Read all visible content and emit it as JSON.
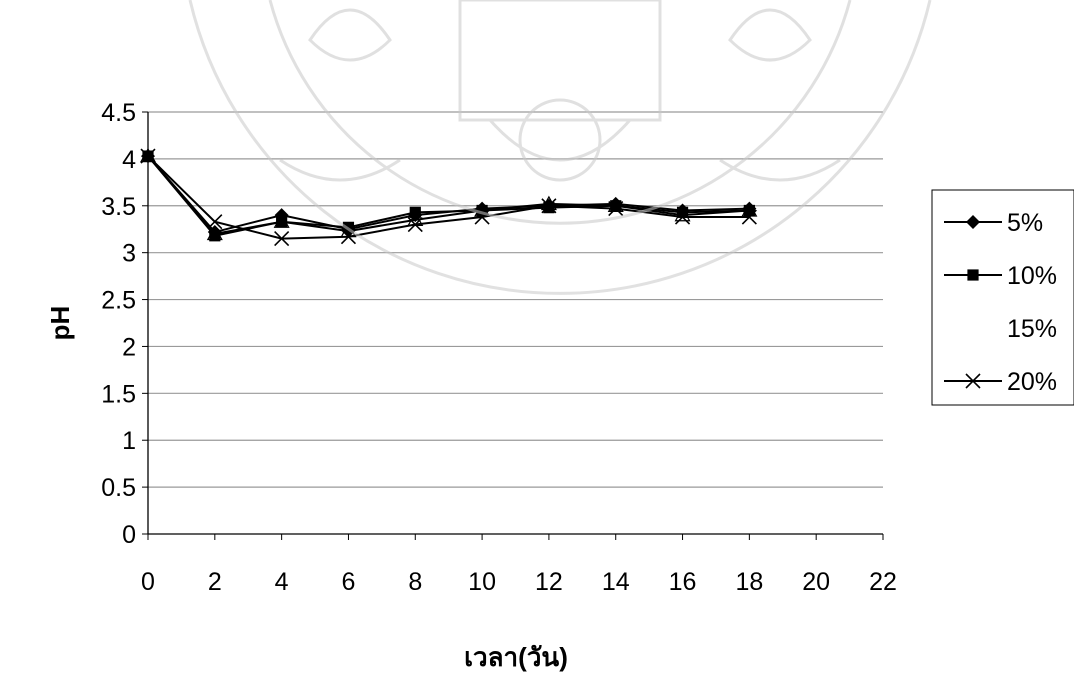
{
  "chart_data": {
    "type": "line",
    "title": "",
    "xlabel": "เวลา(วัน)",
    "ylabel": "pH",
    "xlim": [
      0,
      22
    ],
    "ylim": [
      0,
      4.5
    ],
    "x_ticks": [
      "0",
      "2",
      "4",
      "6",
      "8",
      "10",
      "12",
      "14",
      "16",
      "18",
      "20",
      "22"
    ],
    "y_ticks": [
      "0",
      "0.5",
      "1",
      "1.5",
      "2",
      "2.5",
      "3",
      "3.5",
      "4",
      "4.5"
    ],
    "grid": true,
    "legend_position": "right",
    "x": [
      0,
      2,
      4,
      6,
      8,
      10,
      12,
      14,
      16,
      18
    ],
    "series": [
      {
        "name": "5%",
        "marker": "diamond",
        "color": "#000000",
        "values": [
          4.03,
          3.22,
          3.4,
          3.25,
          3.4,
          3.47,
          3.5,
          3.52,
          3.45,
          3.47
        ]
      },
      {
        "name": "10%",
        "marker": "square",
        "color": "#000000",
        "values": [
          4.03,
          3.18,
          3.33,
          3.27,
          3.43,
          3.45,
          3.48,
          3.5,
          3.43,
          3.45
        ]
      },
      {
        "name": "15%",
        "marker": "triangle",
        "color": "#000000",
        "values": [
          4.03,
          3.2,
          3.33,
          3.23,
          3.35,
          3.45,
          3.52,
          3.5,
          3.4,
          3.45
        ]
      },
      {
        "name": "20%",
        "marker": "x",
        "color": "#000000",
        "values": [
          4.03,
          3.33,
          3.15,
          3.17,
          3.3,
          3.38,
          3.5,
          3.47,
          3.38,
          3.38
        ]
      }
    ]
  }
}
